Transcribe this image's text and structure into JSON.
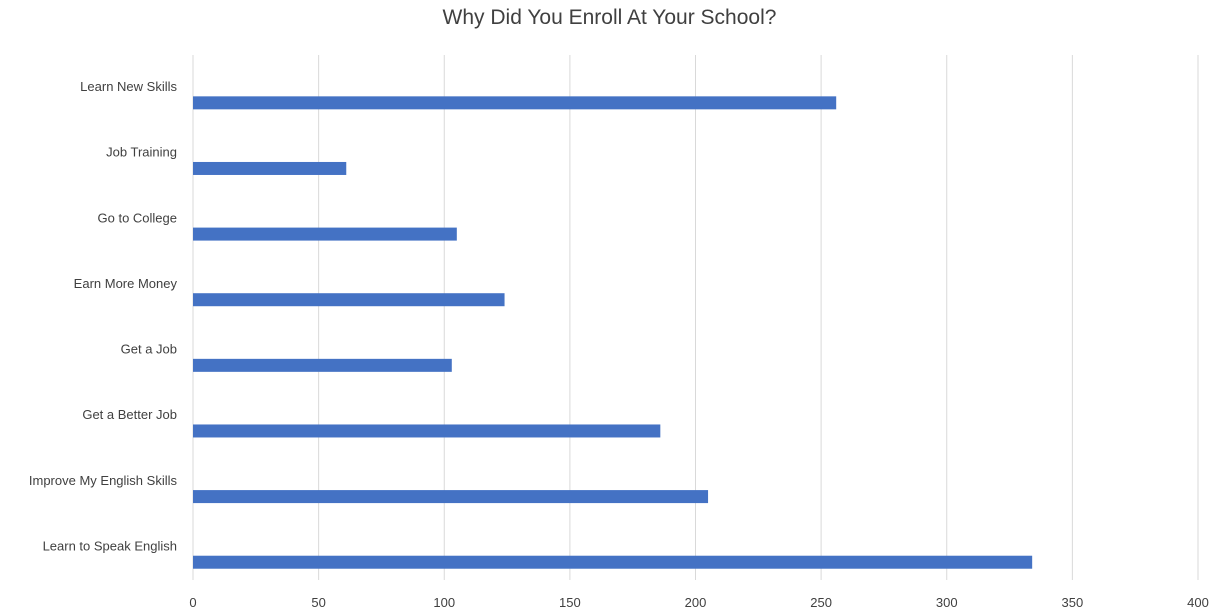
{
  "chart_data": {
    "type": "bar",
    "orientation": "horizontal",
    "title": "Why Did You Enroll At Your School?",
    "xlabel": "",
    "ylabel": "",
    "xlim": [
      0,
      400
    ],
    "x_ticks": [
      0,
      50,
      100,
      150,
      200,
      250,
      300,
      350,
      400
    ],
    "grid": true,
    "legend": "none",
    "bar_color": "#4472c4",
    "grid_color": "#d9d9d9",
    "categories": [
      "Learn New Skills",
      "Job Training",
      "Go to College",
      "Earn More Money",
      "Get a Job",
      "Get a Better Job",
      "Improve My English Skills",
      "Learn to Speak English"
    ],
    "values": [
      256,
      61,
      105,
      124,
      103,
      186,
      205,
      334
    ]
  }
}
